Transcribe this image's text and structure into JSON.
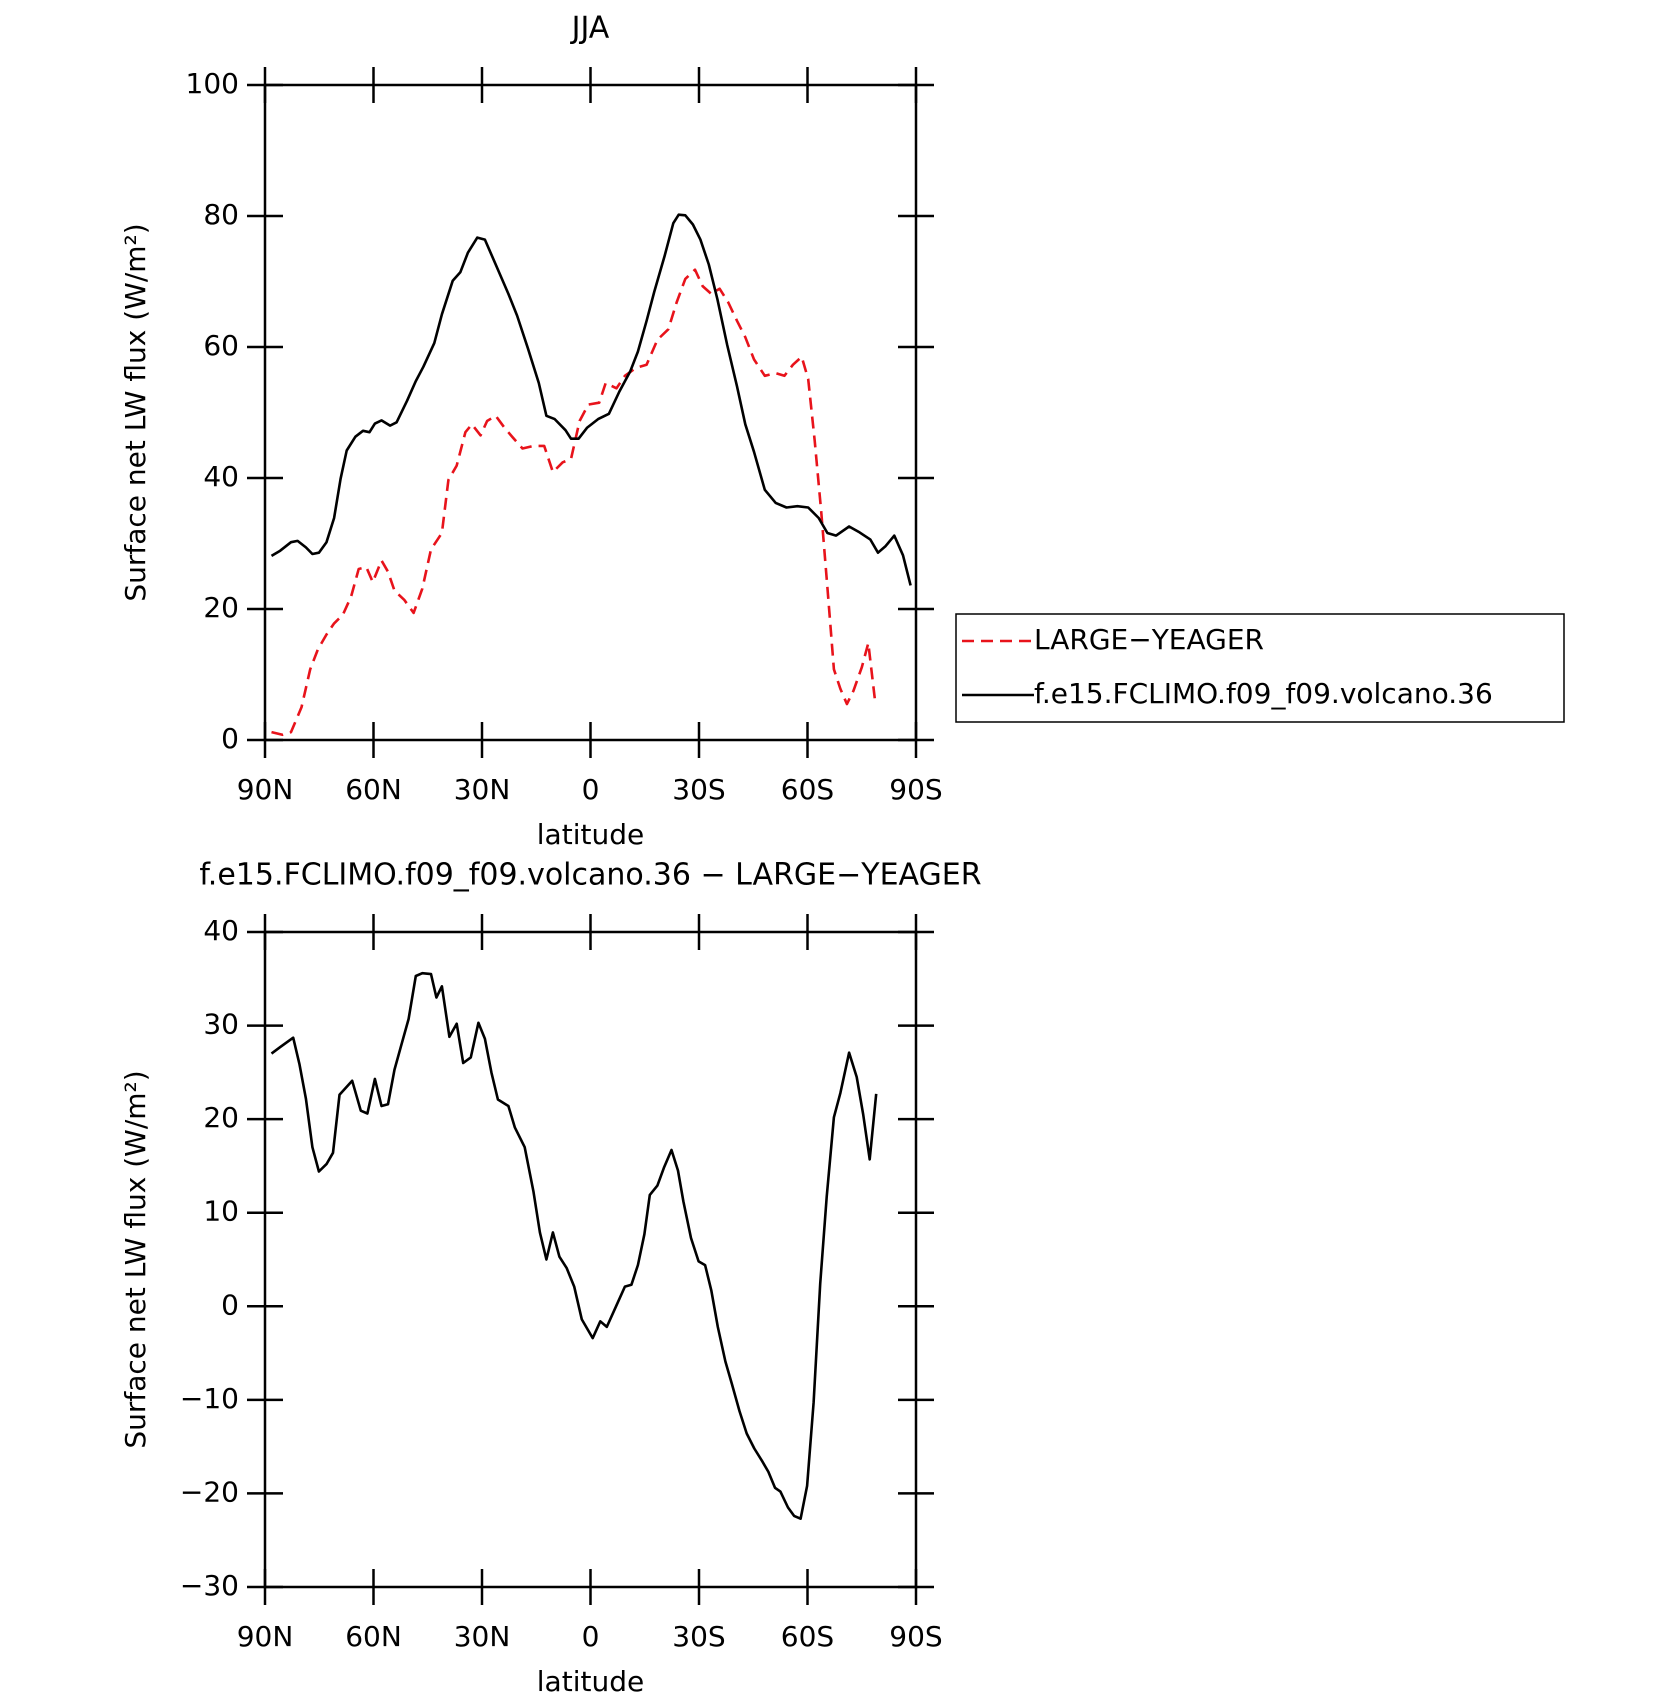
{
  "chart_data": [
    {
      "type": "line",
      "title": "JJA",
      "xlabel": "latitude",
      "ylabel": "Surface net LW flux (W/m²)",
      "xlim": [
        90,
        -90
      ],
      "xticks": [
        {
          "value": 90,
          "label": "90N"
        },
        {
          "value": 60,
          "label": "60N"
        },
        {
          "value": 30,
          "label": "30N"
        },
        0,
        {
          "value": -30,
          "label": "30S"
        },
        {
          "value": -60,
          "label": "60S"
        },
        {
          "value": -90,
          "label": "90S"
        }
      ],
      "ylim": [
        0,
        100
      ],
      "yticks": [
        0,
        20,
        40,
        60,
        80,
        100
      ],
      "series": [
        {
          "name": "LARGE−YEAGER",
          "color": "#e8131b",
          "line_style": "dashed",
          "x": [
            88.2,
            85.2,
            82.8,
            79.9,
            77.5,
            75.4,
            73,
            70.9,
            68.5,
            66.2,
            64.1,
            62,
            60.2,
            57.8,
            56,
            54.2,
            51.5,
            48.9,
            46.5,
            44.1,
            41.1,
            39.3,
            37,
            34.6,
            32.8,
            30.4,
            28.6,
            26.2,
            23.8,
            21.5,
            18.8,
            15.8,
            12.8,
            10.4,
            7.7,
            5.4,
            3,
            0.6,
            -2.4,
            -4.2,
            -7.2,
            -9.5,
            -12.5,
            -15.5,
            -18.5,
            -21.5,
            -23.8,
            -26.2,
            -28.9,
            -31,
            -33.4,
            -35.7,
            -38.1,
            -40.5,
            -42.8,
            -45.2,
            -48.2,
            -51.2,
            -53.6,
            -56,
            -58.4,
            -60.2,
            -62,
            -63.8,
            -65.5,
            -67.3,
            -69.1,
            -70.9,
            -72.7,
            -75,
            -76.8,
            -78.6
          ],
          "values": [
            1.2,
            0.8,
            1.2,
            5,
            10.8,
            13.8,
            16.1,
            17.8,
            19.1,
            21.9,
            26.1,
            26.4,
            24.1,
            27.4,
            25.7,
            22.8,
            21.4,
            19.4,
            23.1,
            29.1,
            31.6,
            39.7,
            41.9,
            47,
            48.2,
            46.5,
            48.7,
            49.5,
            47.7,
            46.2,
            44.5,
            44.9,
            44.9,
            40.9,
            42.4,
            42.9,
            48.7,
            51.2,
            51.5,
            54.5,
            53.7,
            55.6,
            56.8,
            57.3,
            61.1,
            62.7,
            66.8,
            70.4,
            71.8,
            69.3,
            68.1,
            68.9,
            66.8,
            64,
            61.5,
            58.1,
            55.6,
            56,
            55.6,
            57.3,
            58.5,
            55.1,
            45.7,
            34.9,
            23.3,
            10.8,
            7.8,
            5.5,
            7.5,
            11.1,
            14.8,
            6.3
          ]
        },
        {
          "name": "f.e15.FCLIMO.f09_f09.volcano.36",
          "color": "#000000",
          "line_style": "solid",
          "x": [
            88.2,
            85.8,
            82.8,
            81,
            78.7,
            76.9,
            75.1,
            73,
            70.9,
            69.1,
            67.4,
            65,
            62.9,
            61.1,
            59.6,
            57.8,
            55.4,
            53.6,
            50.7,
            48.3,
            46.2,
            43.2,
            41.1,
            38.1,
            36,
            33.9,
            31.3,
            29.2,
            26.2,
            22.7,
            20.3,
            17.3,
            14.3,
            12.2,
            9.9,
            6.9,
            5.4,
            3.3,
            0.9,
            -2.1,
            -5.1,
            -8,
            -11,
            -13.1,
            -15.5,
            -17.6,
            -20.5,
            -22.9,
            -24.4,
            -26.2,
            -28.3,
            -30.4,
            -32.7,
            -35.1,
            -37.8,
            -40.5,
            -42.8,
            -45.2,
            -48.2,
            -51.2,
            -54.2,
            -57.2,
            -60.2,
            -63.1,
            -65.5,
            -67.9,
            -71.5,
            -74.4,
            -77.4,
            -79.5,
            -81.6,
            -84,
            -86.4,
            -88.5
          ],
          "values": [
            28.1,
            28.9,
            30.2,
            30.4,
            29.4,
            28.4,
            28.6,
            30.2,
            33.9,
            39.9,
            44.2,
            46.3,
            47.2,
            47,
            48.3,
            48.8,
            48,
            48.5,
            51.8,
            54.8,
            57,
            60.6,
            65,
            70.1,
            71.4,
            74.4,
            76.7,
            76.4,
            72.6,
            68.1,
            64.8,
            59.8,
            54.5,
            49.5,
            49,
            47.3,
            46,
            46,
            47.7,
            49,
            49.8,
            53.2,
            56.3,
            59.3,
            64,
            68.4,
            73.9,
            78.9,
            80.2,
            80.1,
            78.7,
            76.4,
            72.6,
            67.3,
            60.3,
            54,
            48.2,
            44,
            38.2,
            36.2,
            35.5,
            35.7,
            35.5,
            33.9,
            31.6,
            31.2,
            32.6,
            31.7,
            30.6,
            28.6,
            29.6,
            31.2,
            28.2,
            23.6
          ]
        }
      ]
    },
    {
      "type": "line",
      "title": "f.e15.FCLIMO.f09_f09.volcano.36 − LARGE−YEAGER",
      "xlabel": "latitude",
      "ylabel": "Surface net LW flux (W/m²)",
      "xlim": [
        90,
        -90
      ],
      "xticks": [
        {
          "value": 90,
          "label": "90N"
        },
        {
          "value": 60,
          "label": "60N"
        },
        {
          "value": 30,
          "label": "30N"
        },
        0,
        {
          "value": -30,
          "label": "30S"
        },
        {
          "value": -60,
          "label": "60S"
        },
        {
          "value": -90,
          "label": "90S"
        }
      ],
      "ylim": [
        -30,
        40
      ],
      "yticks": [
        {
          "value": -30,
          "label": "−30"
        },
        {
          "value": -20,
          "label": "−20"
        },
        {
          "value": -10,
          "label": "−10"
        },
        0,
        10,
        20,
        30,
        40
      ],
      "series": [
        {
          "color": "#000000",
          "line_style": "solid",
          "x": [
            88.2,
            85.8,
            82.2,
            80.5,
            78.7,
            76.9,
            75.1,
            73,
            71.2,
            69.4,
            65.9,
            63.5,
            61.7,
            59.6,
            57.8,
            56,
            54.2,
            52.4,
            50.3,
            48.3,
            46.5,
            44.1,
            42.6,
            41.1,
            39,
            37,
            35.2,
            33.1,
            31,
            29.2,
            27.4,
            25.6,
            22.7,
            20.9,
            18.2,
            15.8,
            14,
            12.2,
            10.4,
            8.6,
            6.6,
            4.5,
            2.4,
            -0.6,
            -2.7,
            -4.5,
            -7.2,
            -9.5,
            -11.3,
            -13.1,
            -14.9,
            -16.4,
            -18.5,
            -20.3,
            -22.4,
            -24.2,
            -25.7,
            -27.8,
            -29.9,
            -31.7,
            -33.4,
            -35.2,
            -37.3,
            -39.1,
            -41.2,
            -43.2,
            -45.3,
            -47.4,
            -49.2,
            -51,
            -52.5,
            -54.6,
            -56.3,
            -58.1,
            -59.9,
            -61.7,
            -63.5,
            -65.3,
            -67.3,
            -69.1,
            -71.5,
            -73.6,
            -75.4,
            -77.2,
            -79
          ],
          "values": [
            27,
            27.7,
            28.7,
            25.9,
            22.2,
            17,
            14.4,
            15.2,
            16.4,
            22.6,
            24.1,
            20.9,
            20.6,
            24.3,
            21.4,
            21.6,
            25.3,
            27.8,
            30.7,
            35.3,
            35.6,
            35.5,
            33,
            34.2,
            28.8,
            30.2,
            26,
            26.6,
            30.3,
            28.6,
            25,
            22.1,
            21.4,
            19.1,
            17,
            12.3,
            7.9,
            5,
            7.9,
            5.3,
            4.1,
            2.1,
            -1.4,
            -3.4,
            -1.6,
            -2.2,
            0.1,
            2.1,
            2.3,
            4.4,
            7.7,
            11.9,
            12.9,
            14.8,
            16.7,
            14.5,
            11.2,
            7.3,
            4.8,
            4.4,
            1.7,
            -2.2,
            -5.9,
            -8.3,
            -11.2,
            -13.6,
            -15.2,
            -16.5,
            -17.7,
            -19.4,
            -19.8,
            -21.5,
            -22.4,
            -22.7,
            -19.2,
            -10.3,
            2.4,
            11.7,
            20.2,
            22.8,
            27.1,
            24.5,
            20.5,
            15.7,
            22.7
          ]
        }
      ]
    }
  ]
}
